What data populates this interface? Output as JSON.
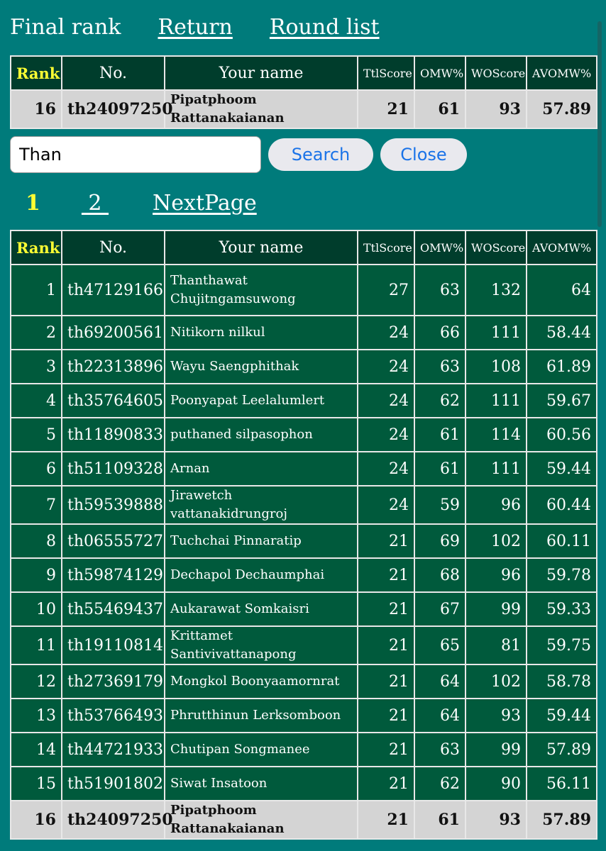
{
  "nav": {
    "title": "Final rank",
    "return_label": "Return",
    "round_list_label": "Round list"
  },
  "headers": {
    "rank": "Rank",
    "no": "No.",
    "name": "Your name",
    "ttl": "TtlScore",
    "omw": "OMW%",
    "wo": "WOScore",
    "avomw": "AVOMW%"
  },
  "you": {
    "rank": "16",
    "no": "th24097250",
    "name": "Pipatphoom Rattanakaianan",
    "ttl": "21",
    "omw": "61",
    "wo": "93",
    "avomw": "57.89"
  },
  "search": {
    "value": "Than",
    "search_label": "Search",
    "close_label": "Close"
  },
  "pager": {
    "current": "1",
    "page2": " 2 ",
    "next_label": "NextPage"
  },
  "rows": [
    {
      "rank": "1",
      "no": "th47129166",
      "name": "Thanthawat Chujitngamsuwong",
      "ttl": "27",
      "omw": "63",
      "wo": "132",
      "avomw": "64"
    },
    {
      "rank": "2",
      "no": "th69200561",
      "name": "Nitikorn nilkul",
      "ttl": "24",
      "omw": "66",
      "wo": "111",
      "avomw": "58.44"
    },
    {
      "rank": "3",
      "no": "th22313896",
      "name": "Wayu Saengphithak",
      "ttl": "24",
      "omw": "63",
      "wo": "108",
      "avomw": "61.89"
    },
    {
      "rank": "4",
      "no": "th35764605",
      "name": "Poonyapat Leelalumlert",
      "ttl": "24",
      "omw": "62",
      "wo": "111",
      "avomw": "59.67"
    },
    {
      "rank": "5",
      "no": "th11890833",
      "name": "puthaned silpasophon",
      "ttl": "24",
      "omw": "61",
      "wo": "114",
      "avomw": "60.56"
    },
    {
      "rank": "6",
      "no": "th51109328",
      "name": "Arnan",
      "ttl": "24",
      "omw": "61",
      "wo": "111",
      "avomw": "59.44"
    },
    {
      "rank": "7",
      "no": "th59539888",
      "name": "Jirawetch vattanakidrungroj",
      "ttl": "24",
      "omw": "59",
      "wo": "96",
      "avomw": "60.44"
    },
    {
      "rank": "8",
      "no": "th06555727",
      "name": "Tuchchai Pinnaratip",
      "ttl": "21",
      "omw": "69",
      "wo": "102",
      "avomw": "60.11"
    },
    {
      "rank": "9",
      "no": "th59874129",
      "name": "Dechapol Dechaumphai",
      "ttl": "21",
      "omw": "68",
      "wo": "96",
      "avomw": "59.78"
    },
    {
      "rank": "10",
      "no": "th55469437",
      "name": "Aukarawat Somkaisri",
      "ttl": "21",
      "omw": "67",
      "wo": "99",
      "avomw": "59.33"
    },
    {
      "rank": "11",
      "no": "th19110814",
      "name": "Krittamet Santivivattanapong",
      "ttl": "21",
      "omw": "65",
      "wo": "81",
      "avomw": "59.75"
    },
    {
      "rank": "12",
      "no": "th27369179",
      "name": "Mongkol Boonyaamornrat",
      "ttl": "21",
      "omw": "64",
      "wo": "102",
      "avomw": "58.78"
    },
    {
      "rank": "13",
      "no": "th53766493",
      "name": "Phrutthinun Lerksomboon",
      "ttl": "21",
      "omw": "64",
      "wo": "93",
      "avomw": "59.44"
    },
    {
      "rank": "14",
      "no": "th44721933",
      "name": "Chutipan Songmanee",
      "ttl": "21",
      "omw": "63",
      "wo": "99",
      "avomw": "57.89"
    },
    {
      "rank": "15",
      "no": "th51901802",
      "name": "Siwat Insatoon",
      "ttl": "21",
      "omw": "62",
      "wo": "90",
      "avomw": "56.11"
    },
    {
      "rank": "16",
      "no": "th24097250",
      "name": "Pipatphoom Rattanakaianan",
      "ttl": "21",
      "omw": "61",
      "wo": "93",
      "avomw": "57.89",
      "highlight": true
    }
  ]
}
